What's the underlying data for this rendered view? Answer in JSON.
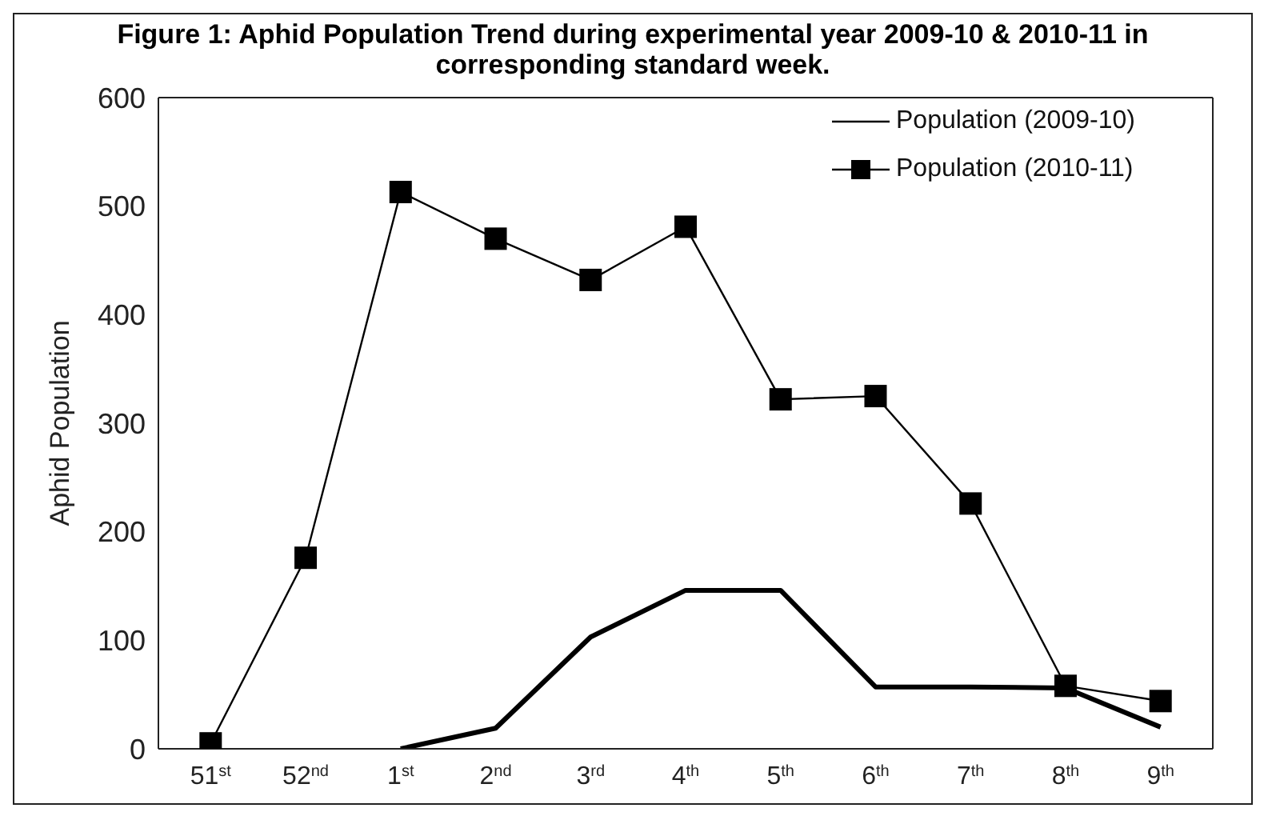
{
  "chart_data": {
    "type": "line",
    "title": "Figure 1: Aphid Population Trend during experimental year 2009-10 & 2010-11 in corresponding standard week.",
    "ylabel": "Aphid Population",
    "categories": [
      "51$^{st}$",
      "52$^{nd}$",
      "1$^{st}$",
      "2$^{nd}$",
      "3$^{rd}$",
      "4$^{th}$",
      "5$^{th}$",
      "6$^{th}$",
      "7$^{th}$",
      "8$^{th}$",
      "9$^{th}$"
    ],
    "series": [
      {
        "name": "Population (2009-10)",
        "color": "#000000",
        "marker": "none",
        "values": [
          null,
          null,
          0,
          19,
          103,
          146,
          146,
          57,
          57,
          56,
          20
        ]
      },
      {
        "name": "Population (2010-11)",
        "color": "#000000",
        "marker": "square",
        "values": [
          5,
          176,
          513,
          470,
          432,
          481,
          322,
          325,
          226,
          58,
          44
        ]
      }
    ],
    "ylim": [
      0,
      600
    ],
    "yticks": [
      0,
      100,
      200,
      300,
      400,
      500,
      600
    ],
    "grid": false,
    "legend": "top right"
  }
}
